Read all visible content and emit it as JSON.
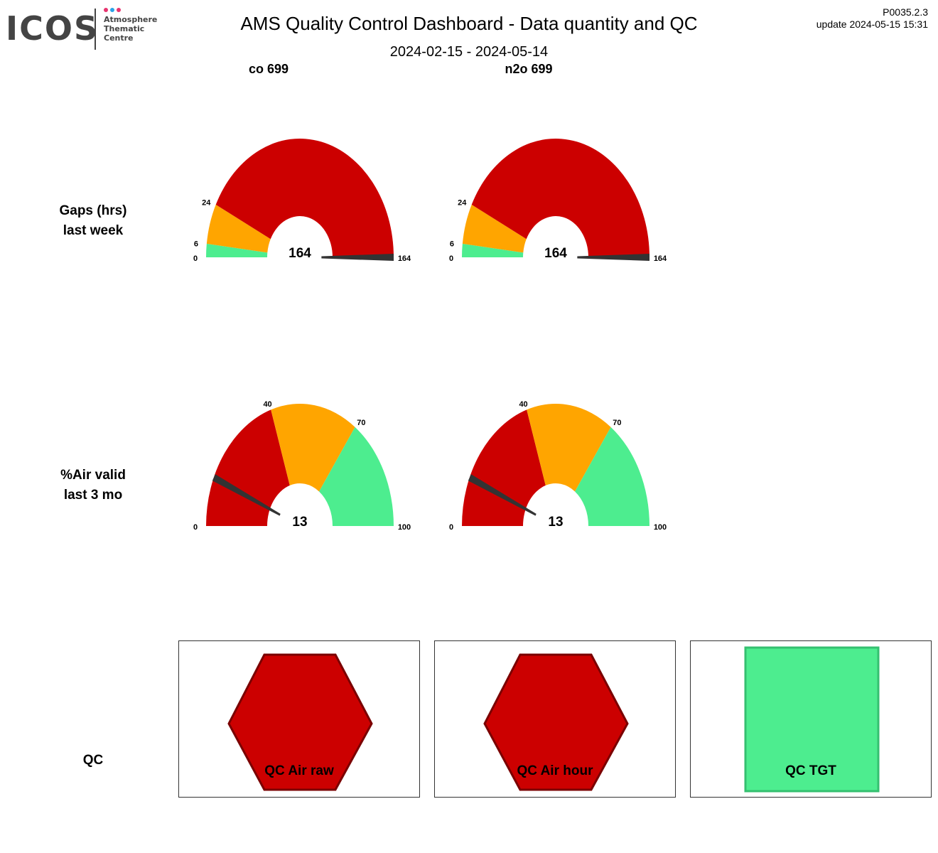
{
  "logo": {
    "wordmark": "ICOS",
    "subtitle": [
      "Atmosphere",
      "Thematic",
      "Centre"
    ],
    "dot_colors": [
      "#e8336f",
      "#2aa3e8",
      "#e8336f"
    ]
  },
  "header": {
    "title": "AMS  Quality Control Dashboard - Data quantity and QC",
    "date_range": "2024-02-15 - 2024-05-14",
    "version": "P0035.2.3",
    "update": "update  2024-05-15 15:31"
  },
  "columns": [
    "co 699",
    "n2o 699"
  ],
  "rows": {
    "gaps": [
      "Gaps (hrs)",
      "last week"
    ],
    "air_valid": [
      "%Air valid",
      "last 3 mo"
    ],
    "qc": "QC"
  },
  "colors": {
    "red": "#cc0000",
    "orange": "#ffa500",
    "green": "#4ded8f",
    "needle": "#333333"
  },
  "gauges": [
    {
      "name": "co-gaps",
      "max": 164,
      "value": 164,
      "value_label": "164",
      "bands": [
        {
          "from": 0,
          "to": 6,
          "color": "#4ded8f"
        },
        {
          "from": 6,
          "to": 24,
          "color": "#ffa500"
        },
        {
          "from": 24,
          "to": 164,
          "color": "#cc0000"
        }
      ],
      "ticks": [
        0,
        6,
        24,
        164
      ]
    },
    {
      "name": "n2o-gaps",
      "max": 164,
      "value": 164,
      "value_label": "164",
      "bands": [
        {
          "from": 0,
          "to": 6,
          "color": "#4ded8f"
        },
        {
          "from": 6,
          "to": 24,
          "color": "#ffa500"
        },
        {
          "from": 24,
          "to": 164,
          "color": "#cc0000"
        }
      ],
      "ticks": [
        0,
        6,
        24,
        164
      ]
    },
    {
      "name": "co-air-valid",
      "max": 100,
      "value": 13,
      "value_label": "13",
      "bands": [
        {
          "from": 0,
          "to": 40,
          "color": "#cc0000"
        },
        {
          "from": 40,
          "to": 70,
          "color": "#ffa500"
        },
        {
          "from": 70,
          "to": 100,
          "color": "#4ded8f"
        }
      ],
      "ticks": [
        0,
        40,
        70,
        100
      ]
    },
    {
      "name": "n2o-air-valid",
      "max": 100,
      "value": 13,
      "value_label": "13",
      "bands": [
        {
          "from": 0,
          "to": 40,
          "color": "#cc0000"
        },
        {
          "from": 40,
          "to": 70,
          "color": "#ffa500"
        },
        {
          "from": 70,
          "to": 100,
          "color": "#4ded8f"
        }
      ],
      "ticks": [
        0,
        40,
        70,
        100
      ]
    }
  ],
  "qc": [
    {
      "label": "QC Air raw",
      "shape": "hexagon",
      "status_color": "#cc0000"
    },
    {
      "label": "QC Air hour",
      "shape": "hexagon",
      "status_color": "#cc0000"
    },
    {
      "label": "QC TGT",
      "shape": "square",
      "status_color": "#4ded8f"
    }
  ]
}
